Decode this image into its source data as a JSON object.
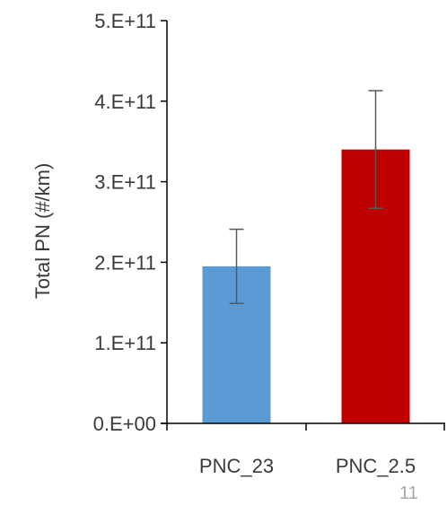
{
  "chart_data": {
    "type": "bar",
    "title": "",
    "xlabel": "",
    "ylabel": "Total PN (#/km)",
    "ylim": [
      0,
      500000000000
    ],
    "yticks": [
      0,
      100000000000,
      200000000000,
      300000000000,
      400000000000,
      500000000000
    ],
    "ytick_labels": [
      "0.E+00",
      "1.E+11",
      "2.E+11",
      "3.E+11",
      "4.E+11",
      "5.E+11"
    ],
    "categories": [
      "PNC_23",
      "PNC_2.5"
    ],
    "values": [
      195000000000,
      340000000000
    ],
    "error_low": [
      149000000000,
      267000000000
    ],
    "error_high": [
      241000000000,
      413000000000
    ],
    "colors": [
      "#5b9bd5",
      "#c00000"
    ],
    "error_color": "#595959",
    "axis_color": "#000000",
    "grid": false,
    "legend": "none"
  },
  "slide_number": "11"
}
